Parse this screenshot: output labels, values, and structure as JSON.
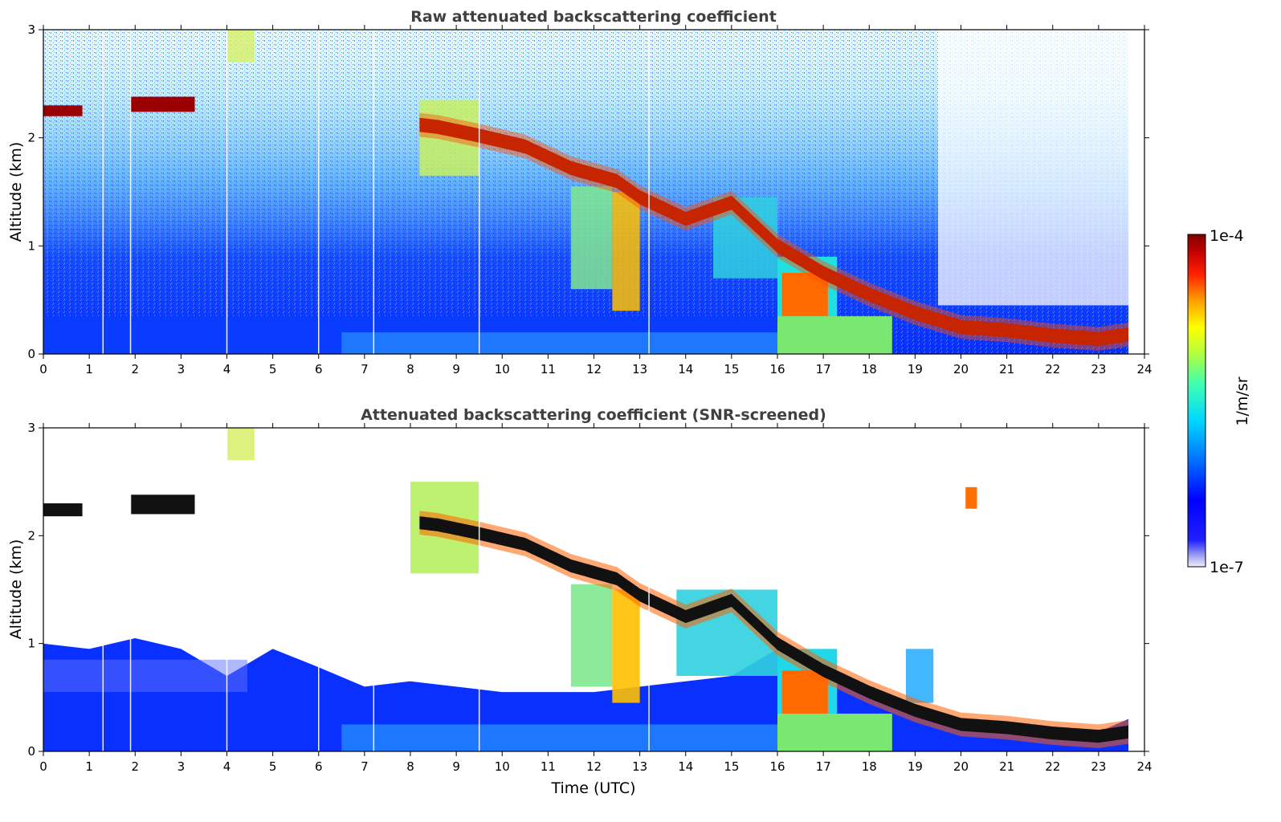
{
  "chart_data": [
    {
      "type": "heatmap",
      "title": "Raw attenuated backscattering coefficient",
      "xlabel": "",
      "ylabel": "Altitude (km)",
      "xlim": [
        0,
        24
      ],
      "ylim": [
        0,
        3
      ],
      "xticks": [
        "0",
        "1",
        "2",
        "3",
        "4",
        "5",
        "6",
        "7",
        "8",
        "9",
        "10",
        "11",
        "12",
        "13",
        "14",
        "15",
        "16",
        "17",
        "18",
        "19",
        "20",
        "21",
        "22",
        "23",
        "24"
      ],
      "yticks": [
        "0",
        "1",
        "2",
        "3"
      ],
      "features": {
        "cloud_layer_km": [
          [
            0.0,
            2.25
          ],
          [
            0.8,
            2.25
          ],
          [
            1.9,
            2.32
          ],
          [
            3.3,
            2.28
          ],
          [
            8.2,
            2.12
          ],
          [
            8.6,
            2.1
          ],
          [
            9.5,
            2.02
          ],
          [
            10.5,
            1.92
          ],
          [
            11.5,
            1.72
          ],
          [
            12.5,
            1.6
          ],
          [
            13.0,
            1.45
          ],
          [
            14.0,
            1.25
          ],
          [
            15.0,
            1.4
          ],
          [
            16.0,
            1.0
          ],
          [
            17.0,
            0.75
          ],
          [
            18.0,
            0.55
          ],
          [
            19.0,
            0.38
          ],
          [
            20.0,
            0.25
          ],
          [
            21.0,
            0.22
          ],
          [
            22.0,
            0.17
          ],
          [
            23.0,
            0.14
          ],
          [
            23.65,
            0.18
          ]
        ],
        "data_end_hour": 23.65,
        "boundary_layer_top_km": 1.0
      }
    },
    {
      "type": "heatmap",
      "title": "Attenuated backscattering coefficient (SNR-screened)",
      "xlabel": "Time (UTC)",
      "ylabel": "Altitude (km)",
      "xlim": [
        0,
        24
      ],
      "ylim": [
        0,
        3
      ],
      "xticks": [
        "0",
        "1",
        "2",
        "3",
        "4",
        "5",
        "6",
        "7",
        "8",
        "9",
        "10",
        "11",
        "12",
        "13",
        "14",
        "15",
        "16",
        "17",
        "18",
        "19",
        "20",
        "21",
        "22",
        "23",
        "24"
      ],
      "yticks": [
        "0",
        "1",
        "2",
        "3"
      ],
      "features": {
        "screened_aerosol_top_km": [
          [
            0,
            1.0
          ],
          [
            1,
            0.95
          ],
          [
            2,
            1.05
          ],
          [
            3,
            0.95
          ],
          [
            4,
            0.7
          ],
          [
            5,
            0.95
          ],
          [
            6,
            0.78
          ],
          [
            7,
            0.6
          ],
          [
            8,
            0.65
          ],
          [
            9,
            0.6
          ],
          [
            10,
            0.55
          ],
          [
            11,
            0.55
          ],
          [
            12,
            0.55
          ],
          [
            13,
            0.6
          ],
          [
            14,
            0.65
          ],
          [
            15,
            0.7
          ],
          [
            16,
            0.95
          ],
          [
            17,
            0.75
          ],
          [
            18,
            0.55
          ],
          [
            19,
            0.38
          ],
          [
            20,
            0.28
          ],
          [
            21,
            0.25
          ],
          [
            22,
            0.2
          ],
          [
            23,
            0.18
          ],
          [
            23.65,
            0.3
          ]
        ]
      }
    }
  ],
  "colorbar": {
    "label": "1/m/sr",
    "max_label": "1e-4",
    "min_label": "1e-7",
    "colors": [
      "#e6e6fa",
      "#b4b4f0",
      "#7878ff",
      "#0000ff",
      "#0064ff",
      "#00b4ff",
      "#00ffff",
      "#32ffb4",
      "#96ff64",
      "#ffff00",
      "#ffb400",
      "#ff6400",
      "#ff0000",
      "#b40000",
      "#800000"
    ]
  }
}
